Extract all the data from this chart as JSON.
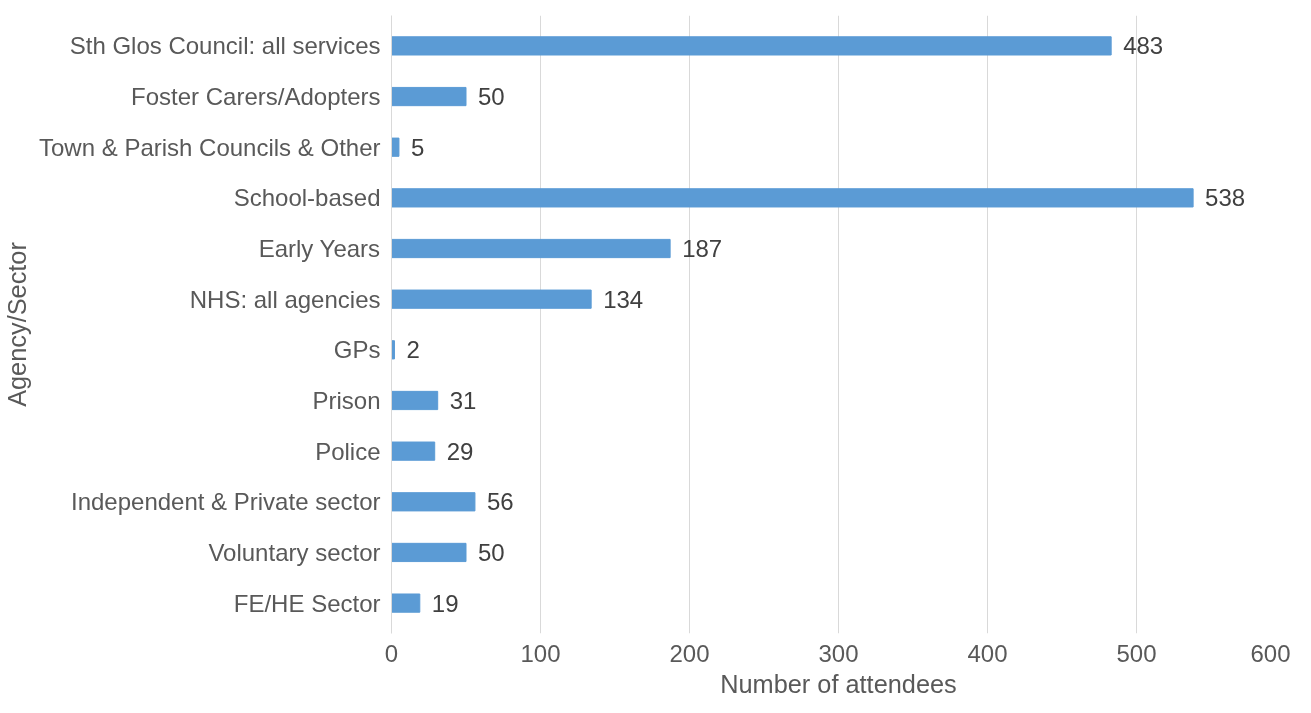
{
  "chart_data": {
    "type": "bar",
    "orientation": "horizontal",
    "xlabel": "Number of attendees",
    "ylabel": "Agency/Sector",
    "categories": [
      "Sth Glos Council: all services",
      "Foster Carers/Adopters",
      "Town & Parish Councils & Other",
      "School-based",
      "Early Years",
      "NHS: all agencies",
      "GPs",
      "Prison",
      "Police",
      "Independent & Private sector",
      "Voluntary sector",
      "FE/HE Sector"
    ],
    "values": [
      483,
      50,
      5,
      538,
      187,
      134,
      2,
      31,
      29,
      56,
      50,
      19
    ],
    "color": "#5b9bd5",
    "data_labels": true,
    "xlim": [
      0,
      600
    ],
    "xticks": [
      0,
      100,
      200,
      300,
      400,
      500,
      600
    ],
    "grid": "x"
  }
}
